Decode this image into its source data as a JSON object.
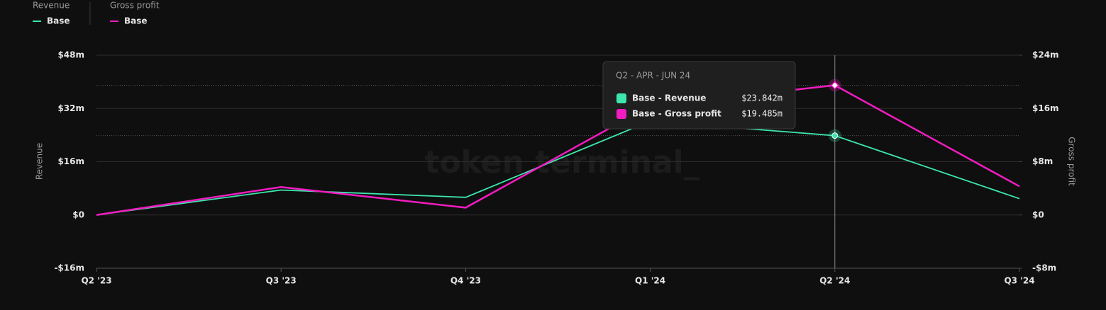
{
  "chart_data": {
    "type": "line",
    "legend_groups": [
      "Revenue",
      "Gross profit"
    ],
    "ylabel": "Revenue",
    "y2label": "Gross profit",
    "watermark": "token terminal_",
    "categories": [
      "Q2 '23",
      "Q3 '23",
      "Q4 '23",
      "Q1 '24",
      "Q2 '24",
      "Q3 '24"
    ],
    "series": [
      {
        "name": "Base",
        "color": "#3de6ad",
        "axis": "y",
        "values": [
          0,
          7.5,
          5.3,
          28.2,
          23.842,
          4.9
        ]
      },
      {
        "name": "Base",
        "color": "#f21cc0",
        "axis": "y2",
        "values": [
          0,
          4.2,
          1.1,
          16.4,
          19.485,
          4.3
        ]
      }
    ],
    "ylim": [
      -16,
      48
    ],
    "yticks": [
      {
        "value": -16,
        "label": "-$16m"
      },
      {
        "value": 0,
        "label": "$0"
      },
      {
        "value": 16,
        "label": "$16m"
      },
      {
        "value": 32,
        "label": "$32m"
      },
      {
        "value": 48,
        "label": "$48m"
      }
    ],
    "y2lim": [
      -8,
      24
    ],
    "y2ticks": [
      {
        "value": -8,
        "label": "-$8m"
      },
      {
        "value": 0,
        "label": "$0"
      },
      {
        "value": 8,
        "label": "$8m"
      },
      {
        "value": 16,
        "label": "$16m"
      },
      {
        "value": 24,
        "label": "$24m"
      }
    ],
    "grid": true,
    "tooltip": {
      "title": "Q2 - APR - JUN 24",
      "rows": [
        {
          "label": "Base - Revenue",
          "value": "$23.842m"
        },
        {
          "label": "Base - Gross profit",
          "value": "$19.485m"
        }
      ]
    }
  }
}
